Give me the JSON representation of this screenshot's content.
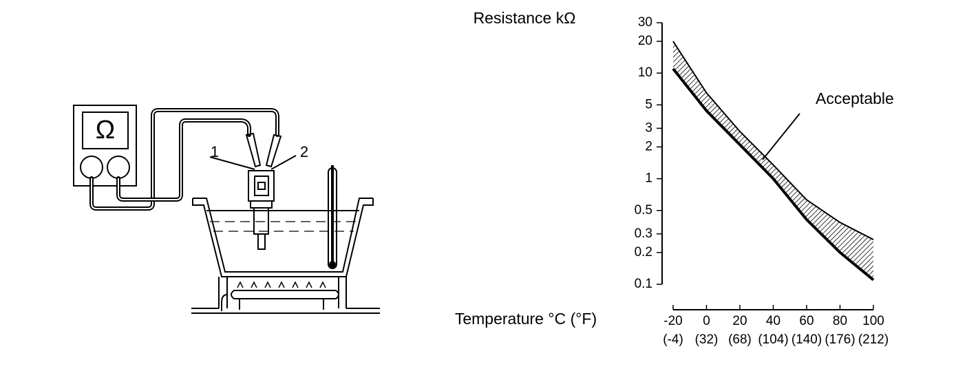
{
  "illustration": {
    "meter_symbol": "Ω",
    "labels": [
      "1",
      "2"
    ]
  },
  "chart_data": {
    "type": "band",
    "title": "Resistance kΩ",
    "x_label": "Temperature °C (°F)",
    "x": [
      -20,
      0,
      20,
      40,
      60,
      80,
      100
    ],
    "series": [
      {
        "color": "#000000",
        "values": [
          20,
          6.5,
          2.8,
          1.35,
          0.63,
          0.385,
          0.265
        ]
      },
      {
        "color": "#000000",
        "values": [
          11,
          4.4,
          2.1,
          1.0,
          0.41,
          0.2,
          0.11
        ]
      }
    ],
    "band_label": "Acceptable",
    "xlim": [
      -20,
      100
    ],
    "xticks": [
      -20,
      0,
      20,
      40,
      60,
      80,
      100
    ],
    "xtick_sublabels": [
      "(-4)",
      "(32)",
      "(68)",
      "(104)",
      "(140)",
      "(176)",
      "(212)"
    ],
    "ylim": [
      0.1,
      30
    ],
    "yticks": [
      0.1,
      0.2,
      0.3,
      0.5,
      1,
      2,
      3,
      5,
      10,
      20,
      30
    ],
    "log_y": true
  }
}
